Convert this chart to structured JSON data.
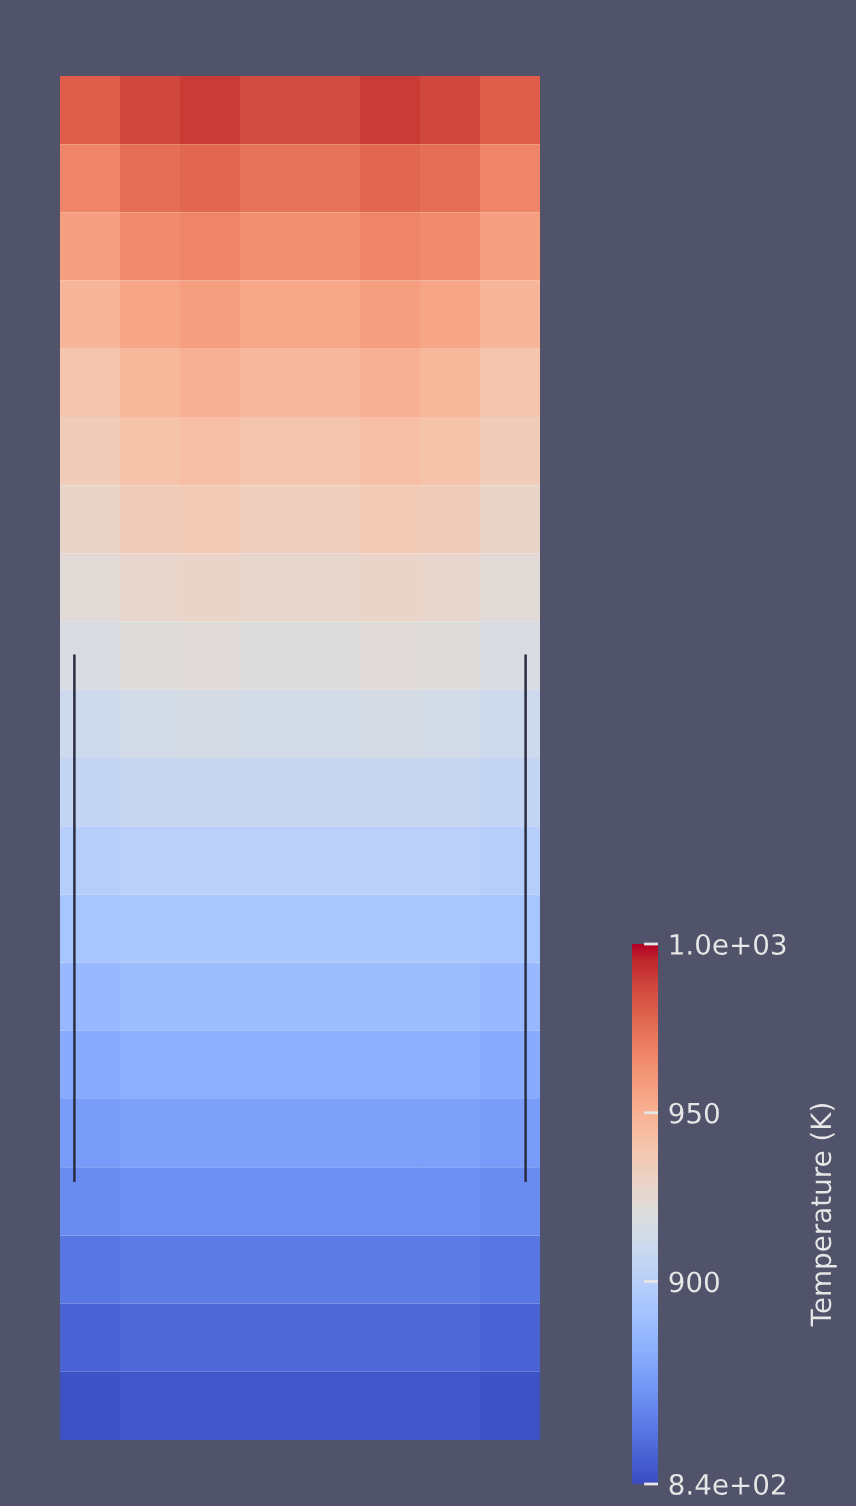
{
  "chart_data": {
    "type": "heatmap",
    "clabel": "Temperature (K)",
    "categories": [
      null,
      null,
      null,
      null,
      null,
      null,
      null,
      null
    ],
    "y_categories": [
      null,
      null,
      null,
      null,
      null,
      null,
      null,
      null,
      null,
      null,
      null,
      null,
      null,
      null,
      null,
      null,
      null,
      null,
      null,
      null
    ],
    "clim": [
      840,
      1000
    ],
    "cticks": [
      {
        "value": 1000,
        "label": "1.0e+03"
      },
      950,
      900,
      {
        "value": 840,
        "label": "8.4e+02"
      }
    ],
    "cells": [
      [
        980,
        987,
        990,
        986,
        986,
        990,
        987,
        980
      ],
      [
        968,
        975,
        978,
        974,
        974,
        978,
        975,
        968
      ],
      [
        958,
        965,
        968,
        964,
        964,
        968,
        965,
        958
      ],
      [
        948,
        955,
        958,
        954,
        954,
        958,
        955,
        948
      ],
      [
        940,
        947,
        950,
        946,
        946,
        950,
        947,
        940
      ],
      [
        935,
        941,
        943,
        940,
        940,
        943,
        941,
        935
      ],
      [
        929,
        934,
        936,
        933,
        933,
        936,
        934,
        929
      ],
      [
        923,
        927,
        929,
        927,
        927,
        929,
        927,
        923
      ],
      [
        917,
        921,
        922,
        920,
        920,
        922,
        921,
        917
      ],
      [
        911,
        914,
        915,
        914,
        914,
        915,
        914,
        911
      ],
      [
        906,
        908,
        908,
        908,
        908,
        908,
        908,
        906
      ],
      [
        899,
        901,
        901,
        901,
        901,
        901,
        901,
        899
      ],
      [
        892,
        894,
        894,
        894,
        894,
        894,
        894,
        892
      ],
      [
        885,
        887,
        887,
        887,
        887,
        887,
        887,
        885
      ],
      [
        878,
        880,
        880,
        880,
        880,
        880,
        880,
        878
      ],
      [
        871,
        873,
        873,
        873,
        873,
        873,
        873,
        871
      ],
      [
        864,
        866,
        866,
        866,
        866,
        866,
        866,
        864
      ],
      [
        856,
        858,
        858,
        858,
        858,
        858,
        858,
        856
      ],
      [
        848,
        850,
        850,
        850,
        850,
        850,
        850,
        848
      ],
      [
        842,
        844,
        844,
        844,
        844,
        844,
        844,
        842
      ]
    ]
  }
}
